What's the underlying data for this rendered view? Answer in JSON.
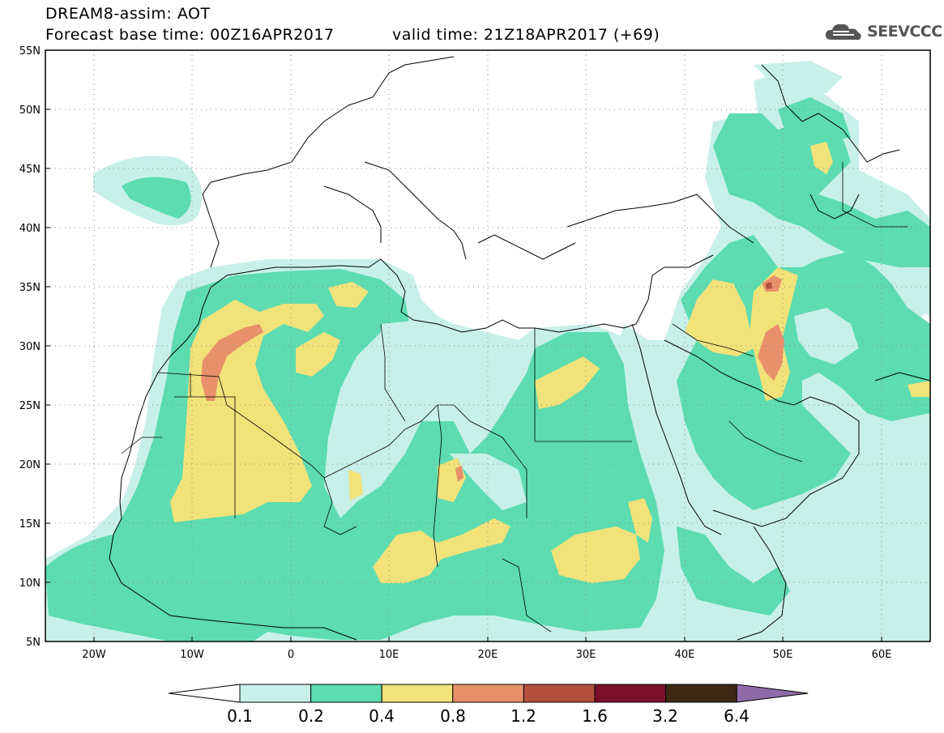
{
  "title": {
    "line1": "DREAM8-assim: AOT",
    "line2": "Forecast base time: 00Z16APR2017",
    "valid": "valid time: 21Z18APR2017 (+69)"
  },
  "logo": {
    "text": "SEEVCCC",
    "icon": "cloud-icon"
  },
  "map": {
    "lat_labels": [
      "55N",
      "50N",
      "45N",
      "40N",
      "35N",
      "30N",
      "25N",
      "20N",
      "15N",
      "10N",
      "5N"
    ],
    "lon_labels": [
      "20W",
      "10W",
      "0",
      "10E",
      "20E",
      "30E",
      "40E",
      "50E",
      "60E"
    ],
    "lon_range": [
      -25,
      65
    ],
    "lat_range": [
      5,
      55
    ],
    "grid": "dotted"
  },
  "colorbar": {
    "labels": [
      "0.1",
      "0.2",
      "0.4",
      "0.8",
      "1.2",
      "1.6",
      "3.2",
      "6.4"
    ],
    "colors": [
      "#ffffff",
      "#c7f0e8",
      "#5cdcb0",
      "#f2e27a",
      "#e8906b",
      "#b5503c",
      "#7c0f2c",
      "#3d2715",
      "#8e6ba8"
    ]
  }
}
